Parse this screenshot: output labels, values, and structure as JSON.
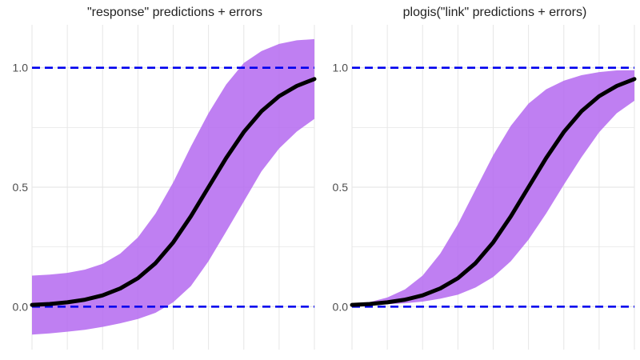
{
  "colors": {
    "band": "#b469f0",
    "line": "#000000",
    "reference": "#0000ee",
    "grid": "#e6e6e6",
    "tick_text": "#4d4d4d",
    "title": "#222222"
  },
  "chart_data": [
    {
      "type": "area",
      "title": "\"response\" predictions + errors",
      "xlabel": "",
      "ylabel": "",
      "x_tick_labels": [],
      "xlim": [
        0,
        8
      ],
      "ylim": [
        -0.18,
        1.18
      ],
      "yticks": [
        0.0,
        0.5,
        1.0
      ],
      "ytick_labels": [
        "0.0",
        "0.5",
        "1.0"
      ],
      "grid": true,
      "legend": "none",
      "reference_lines": [
        {
          "y": 0.0,
          "style": "dashed",
          "color": "blue"
        },
        {
          "y": 1.0,
          "style": "dashed",
          "color": "blue"
        }
      ],
      "x": [
        0,
        0.5,
        1,
        1.5,
        2,
        2.5,
        3,
        3.5,
        4,
        4.5,
        5,
        5.5,
        6,
        6.5,
        7,
        7.5,
        8
      ],
      "series": [
        {
          "role": "fit",
          "style": "thick black line",
          "values": [
            0.007,
            0.011,
            0.018,
            0.029,
            0.047,
            0.076,
            0.119,
            0.182,
            0.269,
            0.378,
            0.5,
            0.622,
            0.731,
            0.818,
            0.881,
            0.924,
            0.953
          ]
        },
        {
          "role": "upper_error",
          "values": [
            0.13,
            0.134,
            0.141,
            0.155,
            0.179,
            0.222,
            0.29,
            0.39,
            0.52,
            0.67,
            0.81,
            0.93,
            1.02,
            1.07,
            1.1,
            1.115,
            1.12
          ]
        },
        {
          "role": "lower_error",
          "values": [
            -0.117,
            -0.112,
            -0.105,
            -0.097,
            -0.085,
            -0.07,
            -0.052,
            -0.026,
            0.018,
            0.086,
            0.19,
            0.314,
            0.44,
            0.566,
            0.662,
            0.733,
            0.786
          ]
        }
      ]
    },
    {
      "type": "area",
      "title": "plogis(\"link\" predictions + errors)",
      "xlabel": "",
      "ylabel": "",
      "x_tick_labels": [],
      "xlim": [
        0,
        8
      ],
      "ylim": [
        -0.18,
        1.18
      ],
      "yticks": [
        0.0,
        0.5,
        1.0
      ],
      "ytick_labels": [
        "0.0",
        "0.5",
        "1.0"
      ],
      "grid": true,
      "legend": "none",
      "reference_lines": [
        {
          "y": 0.0,
          "style": "dashed",
          "color": "blue"
        },
        {
          "y": 1.0,
          "style": "dashed",
          "color": "blue"
        }
      ],
      "x": [
        0,
        0.5,
        1,
        1.5,
        2,
        2.5,
        3,
        3.5,
        4,
        4.5,
        5,
        5.5,
        6,
        6.5,
        7,
        7.5,
        8
      ],
      "series": [
        {
          "role": "fit",
          "style": "thick black line",
          "values": [
            0.007,
            0.011,
            0.018,
            0.029,
            0.047,
            0.076,
            0.119,
            0.182,
            0.269,
            0.378,
            0.5,
            0.622,
            0.731,
            0.818,
            0.881,
            0.924,
            0.953
          ]
        },
        {
          "role": "upper_error",
          "values": [
            0.009,
            0.019,
            0.038,
            0.072,
            0.13,
            0.222,
            0.345,
            0.49,
            0.634,
            0.757,
            0.85,
            0.91,
            0.946,
            0.969,
            0.982,
            0.989,
            0.99
          ]
        },
        {
          "role": "lower_error",
          "values": [
            0.005,
            0.007,
            0.01,
            0.014,
            0.021,
            0.033,
            0.05,
            0.08,
            0.124,
            0.19,
            0.28,
            0.39,
            0.51,
            0.625,
            0.73,
            0.81,
            0.862
          ]
        }
      ]
    }
  ]
}
